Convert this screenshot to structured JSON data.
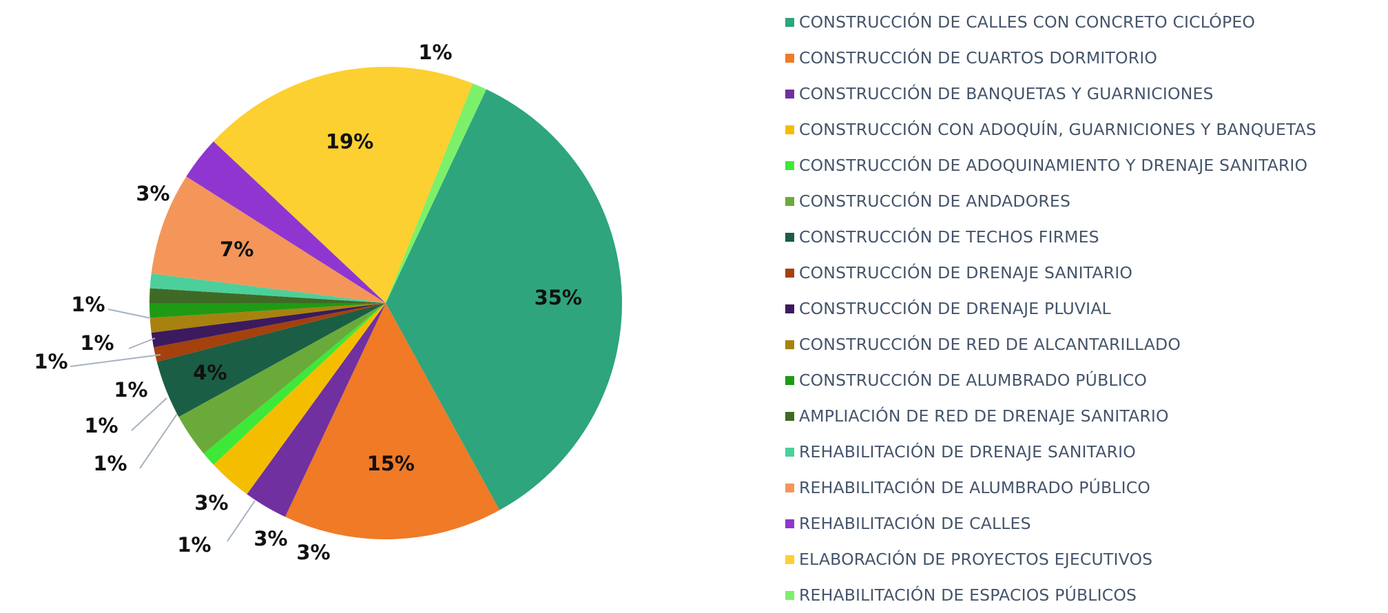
{
  "chart_data": {
    "type": "pie",
    "title": "",
    "legend_position": "right",
    "slices": [
      {
        "label": "CONSTRUCCIÓN DE CALLES CON CONCRETO CICLÓPEO",
        "value": 35,
        "value_label": "35%",
        "color": "#2ea57c"
      },
      {
        "label": "CONSTRUCCIÓN DE CUARTOS DORMITORIO",
        "value": 15,
        "value_label": "15%",
        "color": "#f07a26"
      },
      {
        "label": "CONSTRUCCIÓN DE BANQUETAS Y GUARNICIONES",
        "value": 3,
        "value_label": "3%",
        "color": "#7030a0"
      },
      {
        "label": "CONSTRUCCIÓN CON ADOQUÍN, GUARNICIONES Y BANQUETAS",
        "value": 3,
        "value_label": "3%",
        "color": "#f5bd00"
      },
      {
        "label": "CONSTRUCCIÓN DE ADOQUINAMIENTO Y DRENAJE SANITARIO",
        "value": 1,
        "value_label": "1%",
        "color": "#3ee838"
      },
      {
        "label": "CONSTRUCCIÓN DE ANDADORES",
        "value": 3,
        "value_label": "3%",
        "color": "#6aaa3a"
      },
      {
        "label": "CONSTRUCCIÓN DE TECHOS FIRMES",
        "value": 4,
        "value_label": "4%",
        "color": "#1a5e45"
      },
      {
        "label": "CONSTRUCCIÓN DE DRENAJE SANITARIO",
        "value": 1,
        "value_label": "1%",
        "color": "#a4410c"
      },
      {
        "label": "CONSTRUCCIÓN DE DRENAJE PLUVIAL",
        "value": 1,
        "value_label": "1%",
        "color": "#3c1a5e"
      },
      {
        "label": "CONSTRUCCIÓN DE RED DE ALCANTARILLADO",
        "value": 1,
        "value_label": "1%",
        "color": "#a8820e"
      },
      {
        "label": "CONSTRUCCIÓN DE ALUMBRADO PÚBLICO",
        "value": 1,
        "value_label": "1%",
        "color": "#1f9a15"
      },
      {
        "label": "AMPLIACIÓN DE RED DE DRENAJE SANITARIO",
        "value": 1,
        "value_label": "1%",
        "color": "#3f6a26"
      },
      {
        "label": "REHABILITACIÓN DE DRENAJE SANITARIO",
        "value": 1,
        "value_label": "1%",
        "color": "#4ccf9a"
      },
      {
        "label": "REHABILITACIÓN DE ALUMBRADO PÚBLICO",
        "value": 7,
        "value_label": "7%",
        "color": "#f4965a"
      },
      {
        "label": "REHABILITACIÓN DE CALLES",
        "value": 3,
        "value_label": "3%",
        "color": "#9036d0"
      },
      {
        "label": "ELABORACIÓN DE PROYECTOS EJECUTIVOS",
        "value": 19,
        "value_label": "19%",
        "color": "#fcd030"
      },
      {
        "label": "REHABILITACIÓN DE ESPACIOS PÚBLICOS",
        "value": 1,
        "value_label": "1%",
        "color": "#7cf06a"
      }
    ]
  }
}
